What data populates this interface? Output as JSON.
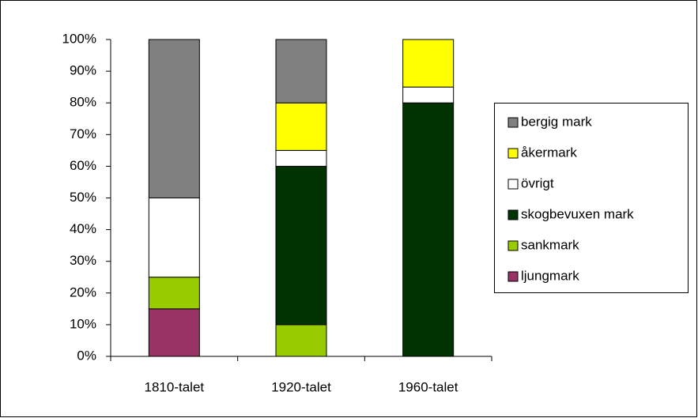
{
  "chart_data": {
    "type": "stacked_bar",
    "categories": [
      "1810-talet",
      "1920-talet",
      "1960-talet"
    ],
    "series": [
      {
        "name": "ljungmark",
        "color": "#993366",
        "values": [
          15,
          0,
          0
        ]
      },
      {
        "name": "sankmark",
        "color": "#99cc00",
        "values": [
          10,
          10,
          0
        ]
      },
      {
        "name": "skogbevuxen mark",
        "color": "#003300",
        "values": [
          0,
          50,
          80
        ]
      },
      {
        "name": "övrigt",
        "color": "#ffffff",
        "values": [
          25,
          5,
          5
        ]
      },
      {
        "name": "åkermark",
        "color": "#ffff00",
        "values": [
          0,
          15,
          15
        ]
      },
      {
        "name": "bergig mark",
        "color": "#808080",
        "values": [
          50,
          20,
          0
        ]
      }
    ],
    "ylim": [
      0,
      100
    ],
    "yticks": [
      {
        "value": 0,
        "label": "0%"
      },
      {
        "value": 10,
        "label": "10%"
      },
      {
        "value": 20,
        "label": "20%"
      },
      {
        "value": 30,
        "label": "30%"
      },
      {
        "value": 40,
        "label": "40%"
      },
      {
        "value": 50,
        "label": "50%"
      },
      {
        "value": 60,
        "label": "60%"
      },
      {
        "value": 70,
        "label": "70%"
      },
      {
        "value": 80,
        "label": "80%"
      },
      {
        "value": 90,
        "label": "90%"
      },
      {
        "value": 100,
        "label": "100%"
      }
    ],
    "legend": "right"
  }
}
